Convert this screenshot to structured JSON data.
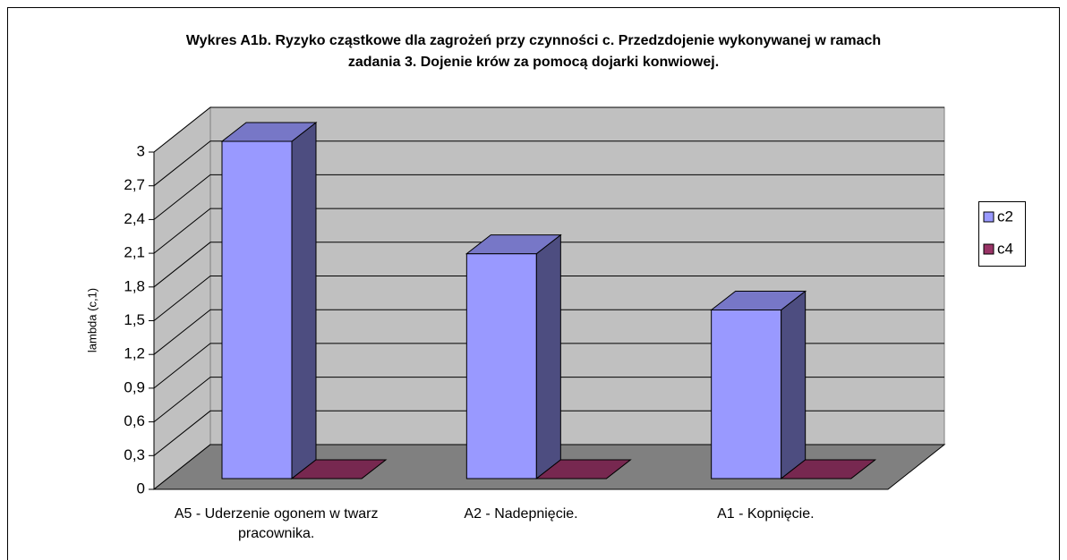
{
  "chart_data": {
    "type": "bar3d",
    "title": "Wykres A1b. Ryzyko cząstkowe dla zagrożeń przy czynności c. Przedzdojenie wykonywanej w ramach zadania 3. Dojenie krów za pomocą dojarki konwiowej.",
    "y_label": "lambda (c,1)",
    "categories": [
      "A5 - Uderzenie ogonem w twarz pracownika.",
      "A2 - Nadepnięcie.",
      "A1 - Kopnięcie."
    ],
    "series": [
      {
        "name": "c2",
        "color": "#9999ff",
        "values": [
          3,
          2,
          1.5
        ]
      },
      {
        "name": "c4",
        "color": "#993366",
        "values": [
          0,
          0,
          0
        ]
      }
    ],
    "ylim": [
      0,
      3
    ],
    "yticks": [
      0,
      {
        "value": 0.3,
        "label": "0,3"
      },
      {
        "value": 0.6,
        "label": "0,6"
      },
      {
        "value": 0.9,
        "label": "0,9"
      },
      {
        "value": 1.2,
        "label": "1,2"
      },
      {
        "value": 1.5,
        "label": "1,5"
      },
      {
        "value": 1.8,
        "label": "1,8"
      },
      {
        "value": 2.1,
        "label": "2,1"
      },
      {
        "value": 2.4,
        "label": "2,4"
      },
      {
        "value": 2.7,
        "label": "2,7"
      },
      3
    ],
    "grid": true,
    "legend": "right"
  }
}
